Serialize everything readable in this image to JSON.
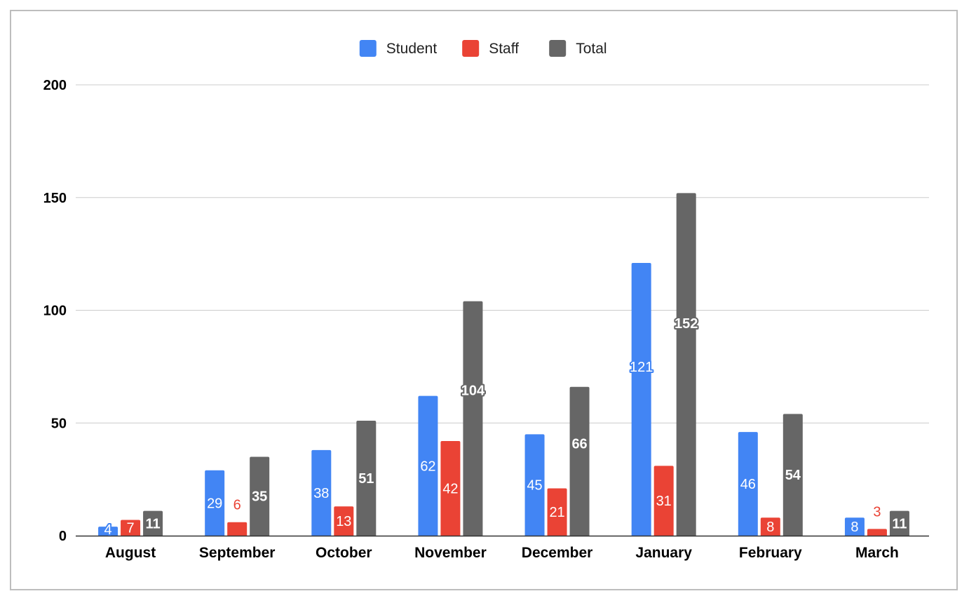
{
  "chart_data": {
    "type": "bar",
    "categories": [
      "August",
      "September",
      "October",
      "November",
      "December",
      "January",
      "February",
      "March"
    ],
    "series": [
      {
        "name": "Student",
        "color": "#4285f4",
        "values": [
          4,
          29,
          38,
          62,
          45,
          121,
          46,
          8
        ]
      },
      {
        "name": "Staff",
        "color": "#ea4335",
        "values": [
          7,
          6,
          13,
          42,
          21,
          31,
          8,
          3
        ]
      },
      {
        "name": "Total",
        "color": "#666666",
        "values": [
          11,
          35,
          51,
          104,
          66,
          152,
          54,
          11
        ]
      }
    ],
    "ylim": [
      0,
      200
    ],
    "yticks": [
      0,
      50,
      100,
      150,
      200
    ],
    "ytick_labels": [
      "0",
      "50",
      "100",
      "150",
      "200"
    ],
    "grid": true,
    "legend": "top-center",
    "data_labels": true,
    "title": "",
    "xlabel": "",
    "ylabel": ""
  }
}
